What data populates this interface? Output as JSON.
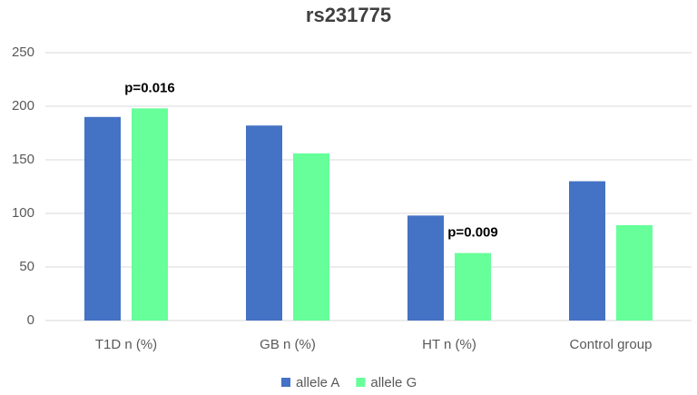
{
  "chart_data": {
    "type": "bar",
    "title": "rs231775",
    "categories": [
      "T1D n (%)",
      "GB n (%)",
      "HT n (%)",
      "Control group"
    ],
    "series": [
      {
        "name": "allele A",
        "color": "#4472c4",
        "values": [
          190,
          182,
          98,
          130
        ]
      },
      {
        "name": "allele G",
        "color": "#66ff99",
        "values": [
          198,
          156,
          63,
          89
        ]
      }
    ],
    "annotations": [
      "p=0.016",
      "p=0.009"
    ],
    "ylim": [
      0,
      250
    ],
    "yticks": [
      0,
      50,
      100,
      150,
      200,
      250
    ],
    "grid": true,
    "legend": "bottom"
  }
}
